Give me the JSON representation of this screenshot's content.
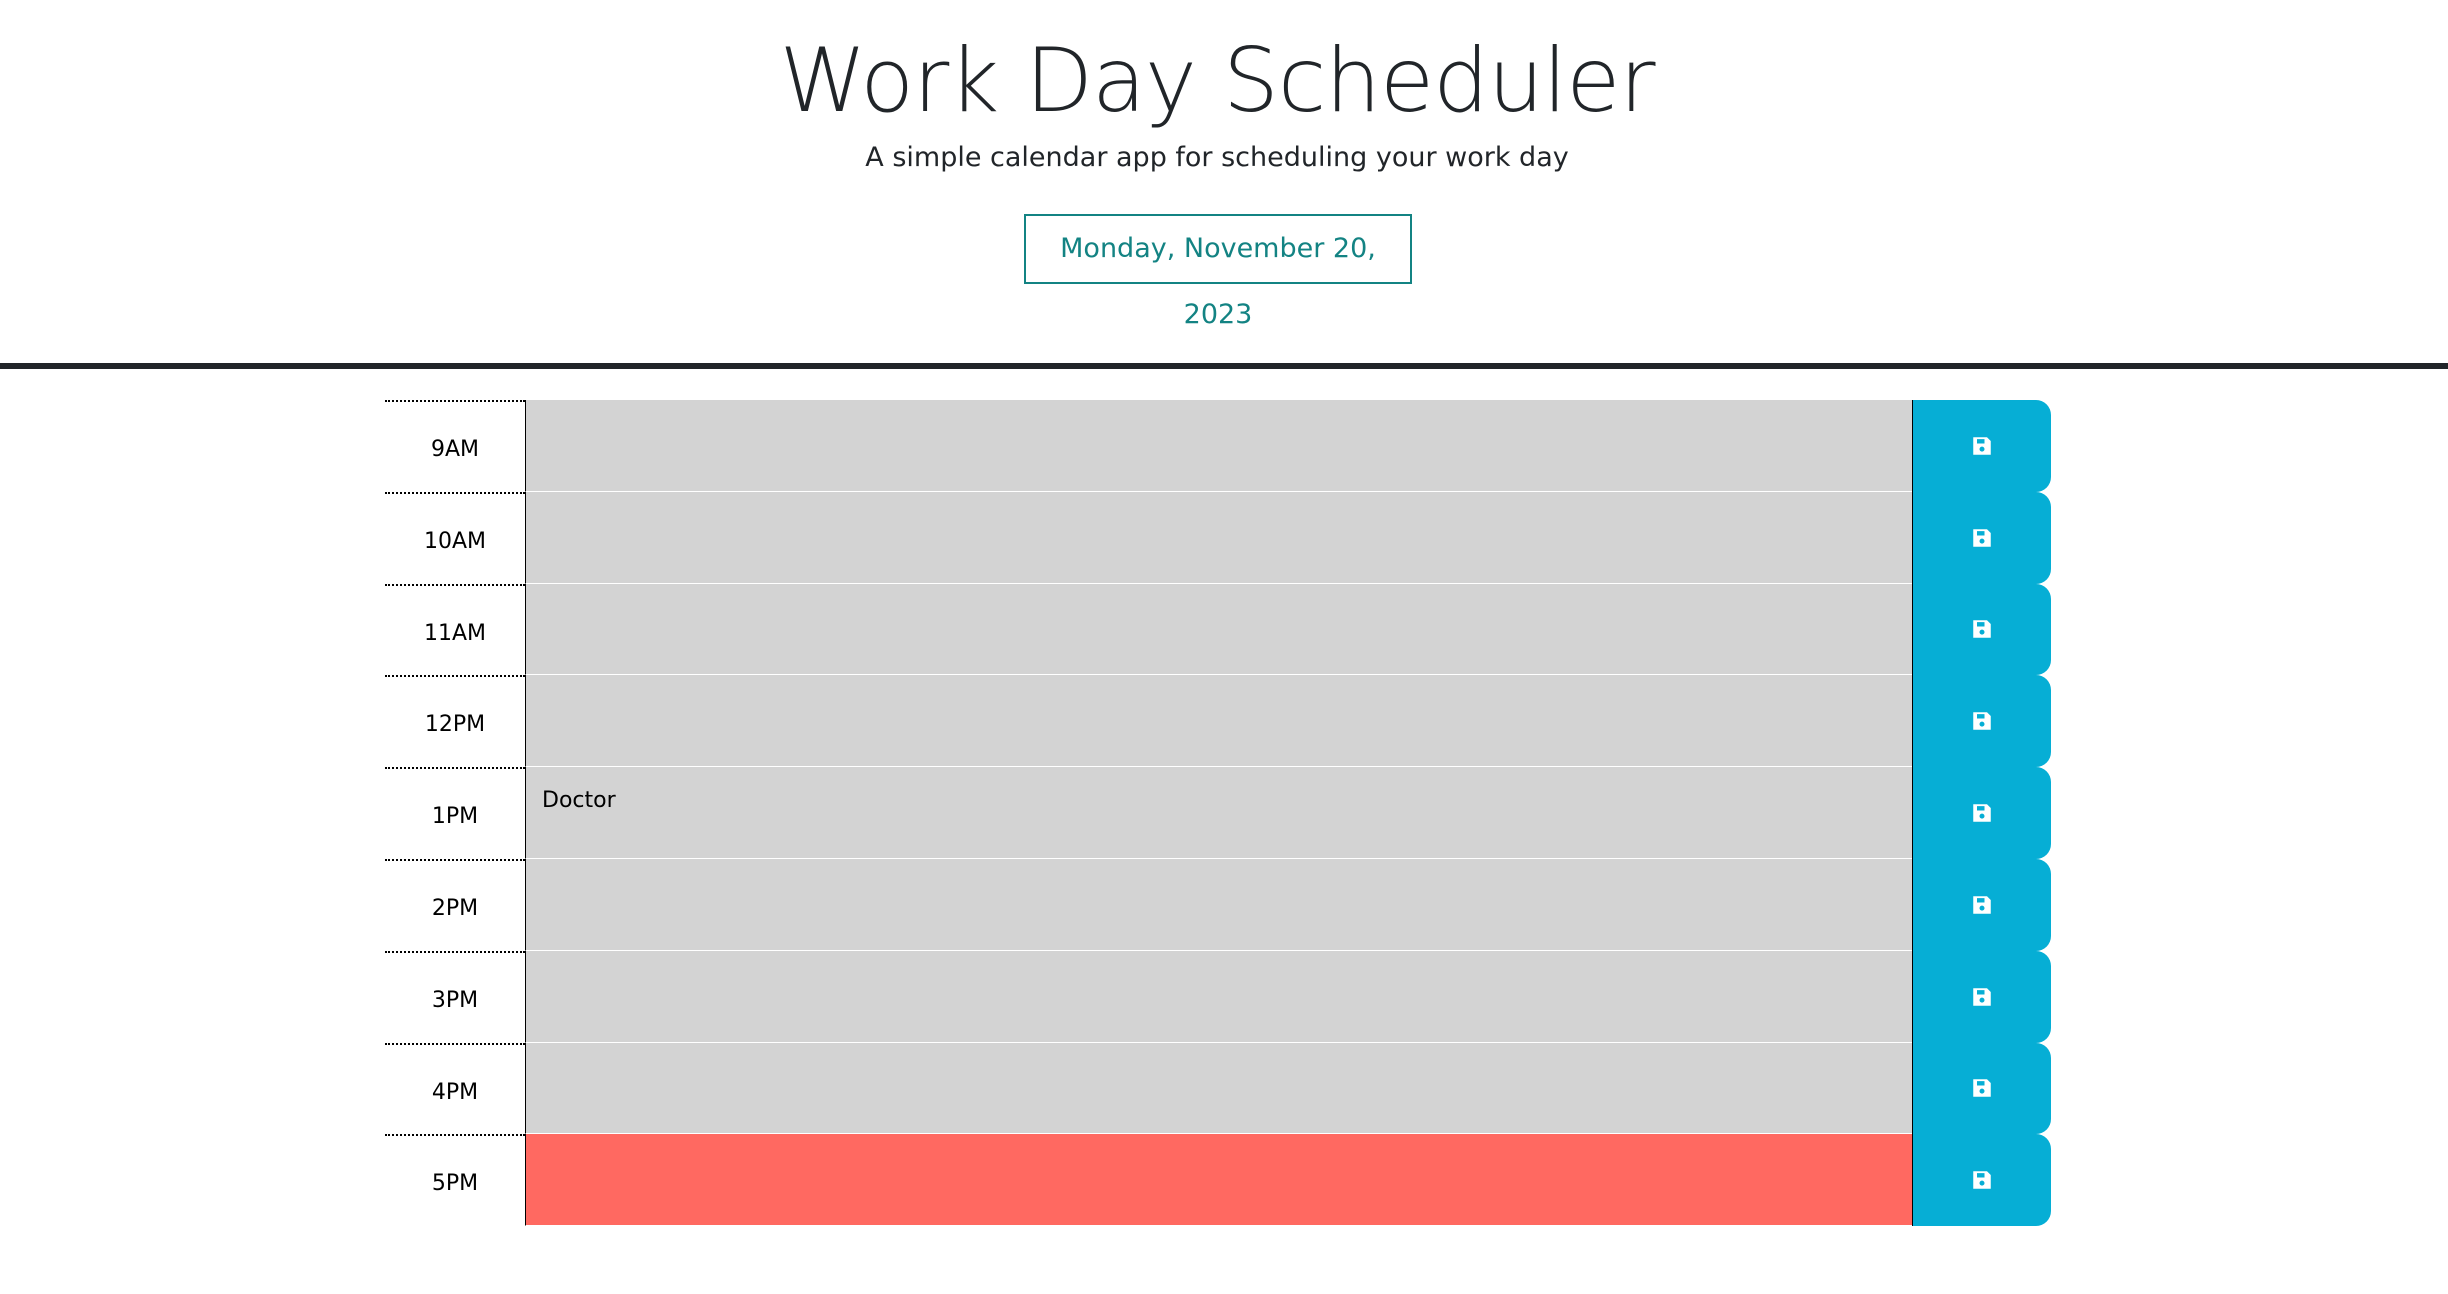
{
  "header": {
    "title": "Work Day Scheduler",
    "subtitle": "A simple calendar app for scheduling your work day",
    "current_date": "Monday, November 20, 2023"
  },
  "colors": {
    "past": "#d3d3d3",
    "present": "#ff6961",
    "save_button": "#06aed5",
    "date_text": "#138383"
  },
  "time_blocks": [
    {
      "hour": "9AM",
      "text": "",
      "state": "past",
      "save_icon": "save-icon"
    },
    {
      "hour": "10AM",
      "text": "",
      "state": "past",
      "save_icon": "save-icon"
    },
    {
      "hour": "11AM",
      "text": "",
      "state": "past",
      "save_icon": "save-icon"
    },
    {
      "hour": "12PM",
      "text": "",
      "state": "past",
      "save_icon": "save-icon"
    },
    {
      "hour": "1PM",
      "text": "Doctor",
      "state": "past",
      "save_icon": "save-icon"
    },
    {
      "hour": "2PM",
      "text": "",
      "state": "past",
      "save_icon": "save-icon"
    },
    {
      "hour": "3PM",
      "text": "",
      "state": "past",
      "save_icon": "save-icon"
    },
    {
      "hour": "4PM",
      "text": "",
      "state": "past",
      "save_icon": "save-icon"
    },
    {
      "hour": "5PM",
      "text": "",
      "state": "present",
      "save_icon": "save-icon"
    }
  ]
}
